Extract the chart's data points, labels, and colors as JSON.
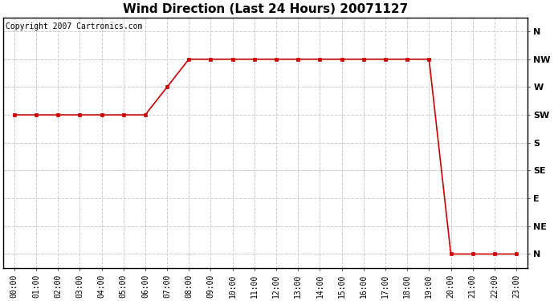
{
  "title": "Wind Direction (Last 24 Hours) 20071127",
  "copyright_text": "Copyright 2007 Cartronics.com",
  "x_labels": [
    "00:00",
    "01:00",
    "02:00",
    "03:00",
    "04:00",
    "05:00",
    "06:00",
    "07:00",
    "08:00",
    "09:00",
    "10:00",
    "11:00",
    "12:00",
    "13:00",
    "14:00",
    "15:00",
    "16:00",
    "17:00",
    "18:00",
    "19:00",
    "20:00",
    "21:00",
    "22:00",
    "23:00"
  ],
  "y_tick_positions": [
    8,
    7,
    6,
    5,
    4,
    3,
    2,
    1,
    0
  ],
  "y_labels": [
    "N",
    "NW",
    "W",
    "SW",
    "S",
    "SE",
    "E",
    "NE",
    "N"
  ],
  "wind_data": {
    "hours": [
      0,
      1,
      2,
      3,
      4,
      5,
      6,
      7,
      8,
      9,
      10,
      11,
      12,
      13,
      14,
      15,
      16,
      17,
      18,
      19,
      20,
      21,
      22,
      23
    ],
    "directions": [
      5,
      5,
      5,
      5,
      5,
      5,
      5,
      6,
      7,
      7,
      7,
      7,
      7,
      7,
      7,
      7,
      7,
      7,
      7,
      7,
      0,
      0,
      0,
      0
    ]
  },
  "line_color": "#cc0000",
  "marker": "s",
  "marker_size": 3.5,
  "background_color": "#ffffff",
  "plot_bg_color": "#ffffff",
  "grid_color": "#cccccc",
  "grid_style": "--",
  "title_fontsize": 11,
  "axis_fontsize": 8,
  "copyright_fontsize": 7,
  "figsize": [
    6.9,
    3.75
  ],
  "dpi": 100
}
